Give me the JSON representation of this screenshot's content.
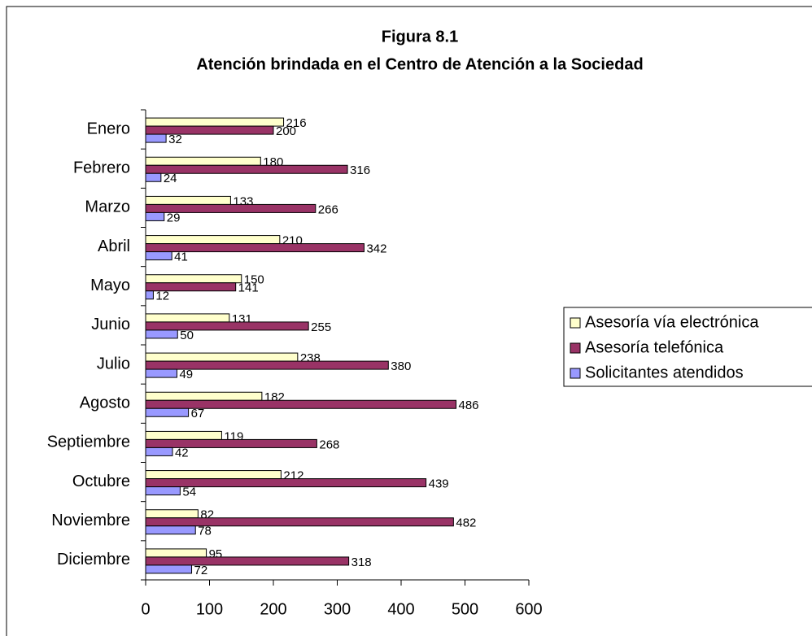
{
  "chart_data": {
    "type": "barh",
    "title": "Figura 8.1",
    "subtitle": "Atención brindada en el Centro de Atención a la Sociedad",
    "categories": [
      "Enero",
      "Febrero",
      "Marzo",
      "Abril",
      "Mayo",
      "Junio",
      "Julio",
      "Agosto",
      "Septiembre",
      "Octubre",
      "Noviembre",
      "Diciembre"
    ],
    "series": [
      {
        "name": "Asesoría vía electrónica",
        "color": "#ffffcc",
        "values": [
          216,
          180,
          133,
          210,
          150,
          131,
          238,
          182,
          119,
          212,
          82,
          95
        ]
      },
      {
        "name": "Asesoría telefónica",
        "color": "#993366",
        "values": [
          200,
          316,
          266,
          342,
          141,
          255,
          380,
          486,
          268,
          439,
          482,
          318
        ]
      },
      {
        "name": "Solicitantes atendidos",
        "color": "#9999ff",
        "values": [
          32,
          24,
          29,
          41,
          12,
          50,
          49,
          67,
          42,
          54,
          78,
          72
        ]
      }
    ],
    "xlim": [
      0,
      600
    ],
    "xticks": [
      0,
      100,
      200,
      300,
      400,
      500,
      600
    ],
    "legend": "right"
  }
}
